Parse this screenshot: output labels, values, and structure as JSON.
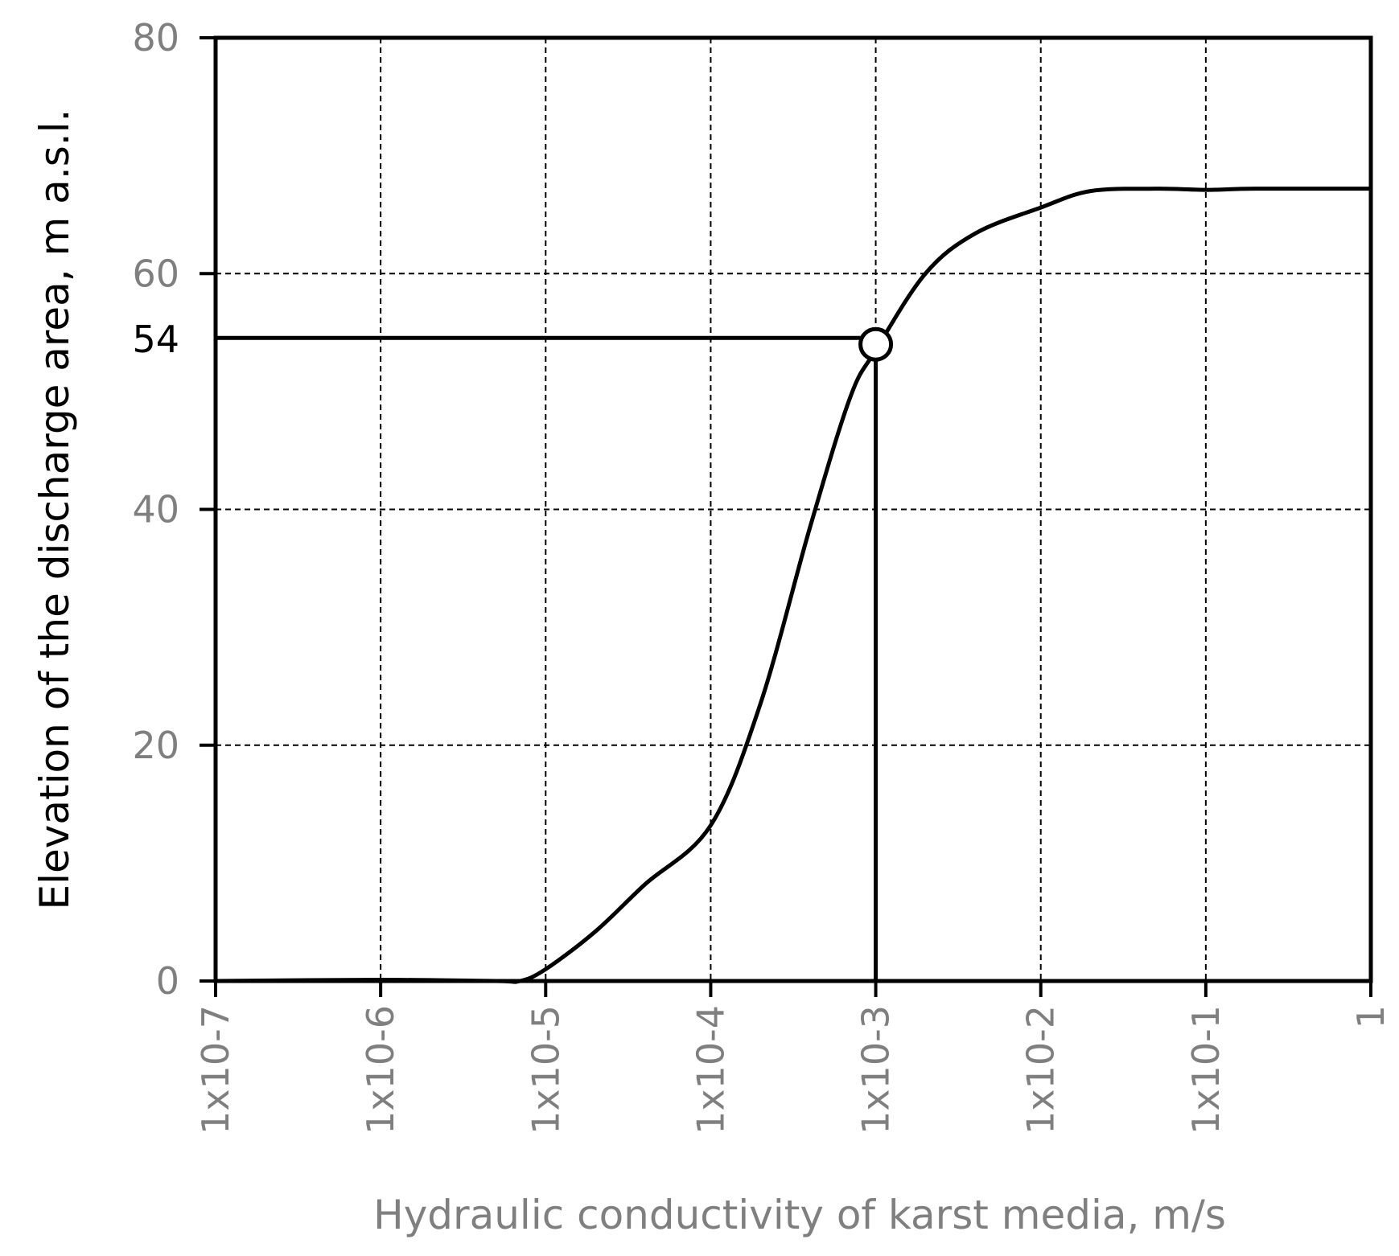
{
  "chart_data": {
    "type": "line",
    "title": "",
    "xlabel": "Hydraulic conductivity of karst media, m/s",
    "ylabel": "Elevation of the discharge area, m a.s.l.",
    "x_scale": "log",
    "xlim": [
      1e-07,
      1
    ],
    "ylim": [
      0,
      80
    ],
    "grid": true,
    "grid_style": "dashed",
    "x_ticks": [
      {
        "value": 1e-07,
        "label": "1x10-7"
      },
      {
        "value": 1e-06,
        "label": "1x10-6"
      },
      {
        "value": 1e-05,
        "label": "1x10-5"
      },
      {
        "value": 0.0001,
        "label": "1x10-4"
      },
      {
        "value": 0.001,
        "label": "1x10-3"
      },
      {
        "value": 0.01,
        "label": "1x10-2"
      },
      {
        "value": 0.1,
        "label": "1x10-1"
      },
      {
        "value": 1,
        "label": "1"
      }
    ],
    "y_ticks": [
      {
        "value": 0,
        "label": "0"
      },
      {
        "value": 20,
        "label": "20"
      },
      {
        "value": 40,
        "label": "40"
      },
      {
        "value": 60,
        "label": "60"
      },
      {
        "value": 80,
        "label": "80"
      }
    ],
    "series": [
      {
        "color": "#000000",
        "points": [
          [
            1e-07,
            0
          ],
          [
            1e-06,
            0.1
          ],
          [
            5e-06,
            0
          ],
          [
            7e-06,
            0
          ],
          [
            1e-05,
            1.0
          ],
          [
            2e-05,
            4.2
          ],
          [
            4e-05,
            8.2
          ],
          [
            0.0001,
            13.2
          ],
          [
            0.0002,
            23.5
          ],
          [
            0.0004,
            38.5
          ],
          [
            0.0007,
            49.5
          ],
          [
            0.001,
            53.5
          ],
          [
            0.002,
            60.0
          ],
          [
            0.004,
            63.4
          ],
          [
            0.01,
            65.6
          ],
          [
            0.02,
            67.0
          ],
          [
            0.05,
            67.2
          ],
          [
            0.1,
            67.1
          ],
          [
            0.2,
            67.2
          ],
          [
            1,
            67.2
          ]
        ]
      }
    ],
    "annotation": {
      "x": 0.001,
      "y": 54,
      "label": "54",
      "marker": "open-circle"
    },
    "colors": {
      "line": "#000000",
      "grid": "#000000",
      "tick_label": "#7f7f7f",
      "ylabel": "#000000",
      "xlabel": "#7f7f7f"
    }
  }
}
